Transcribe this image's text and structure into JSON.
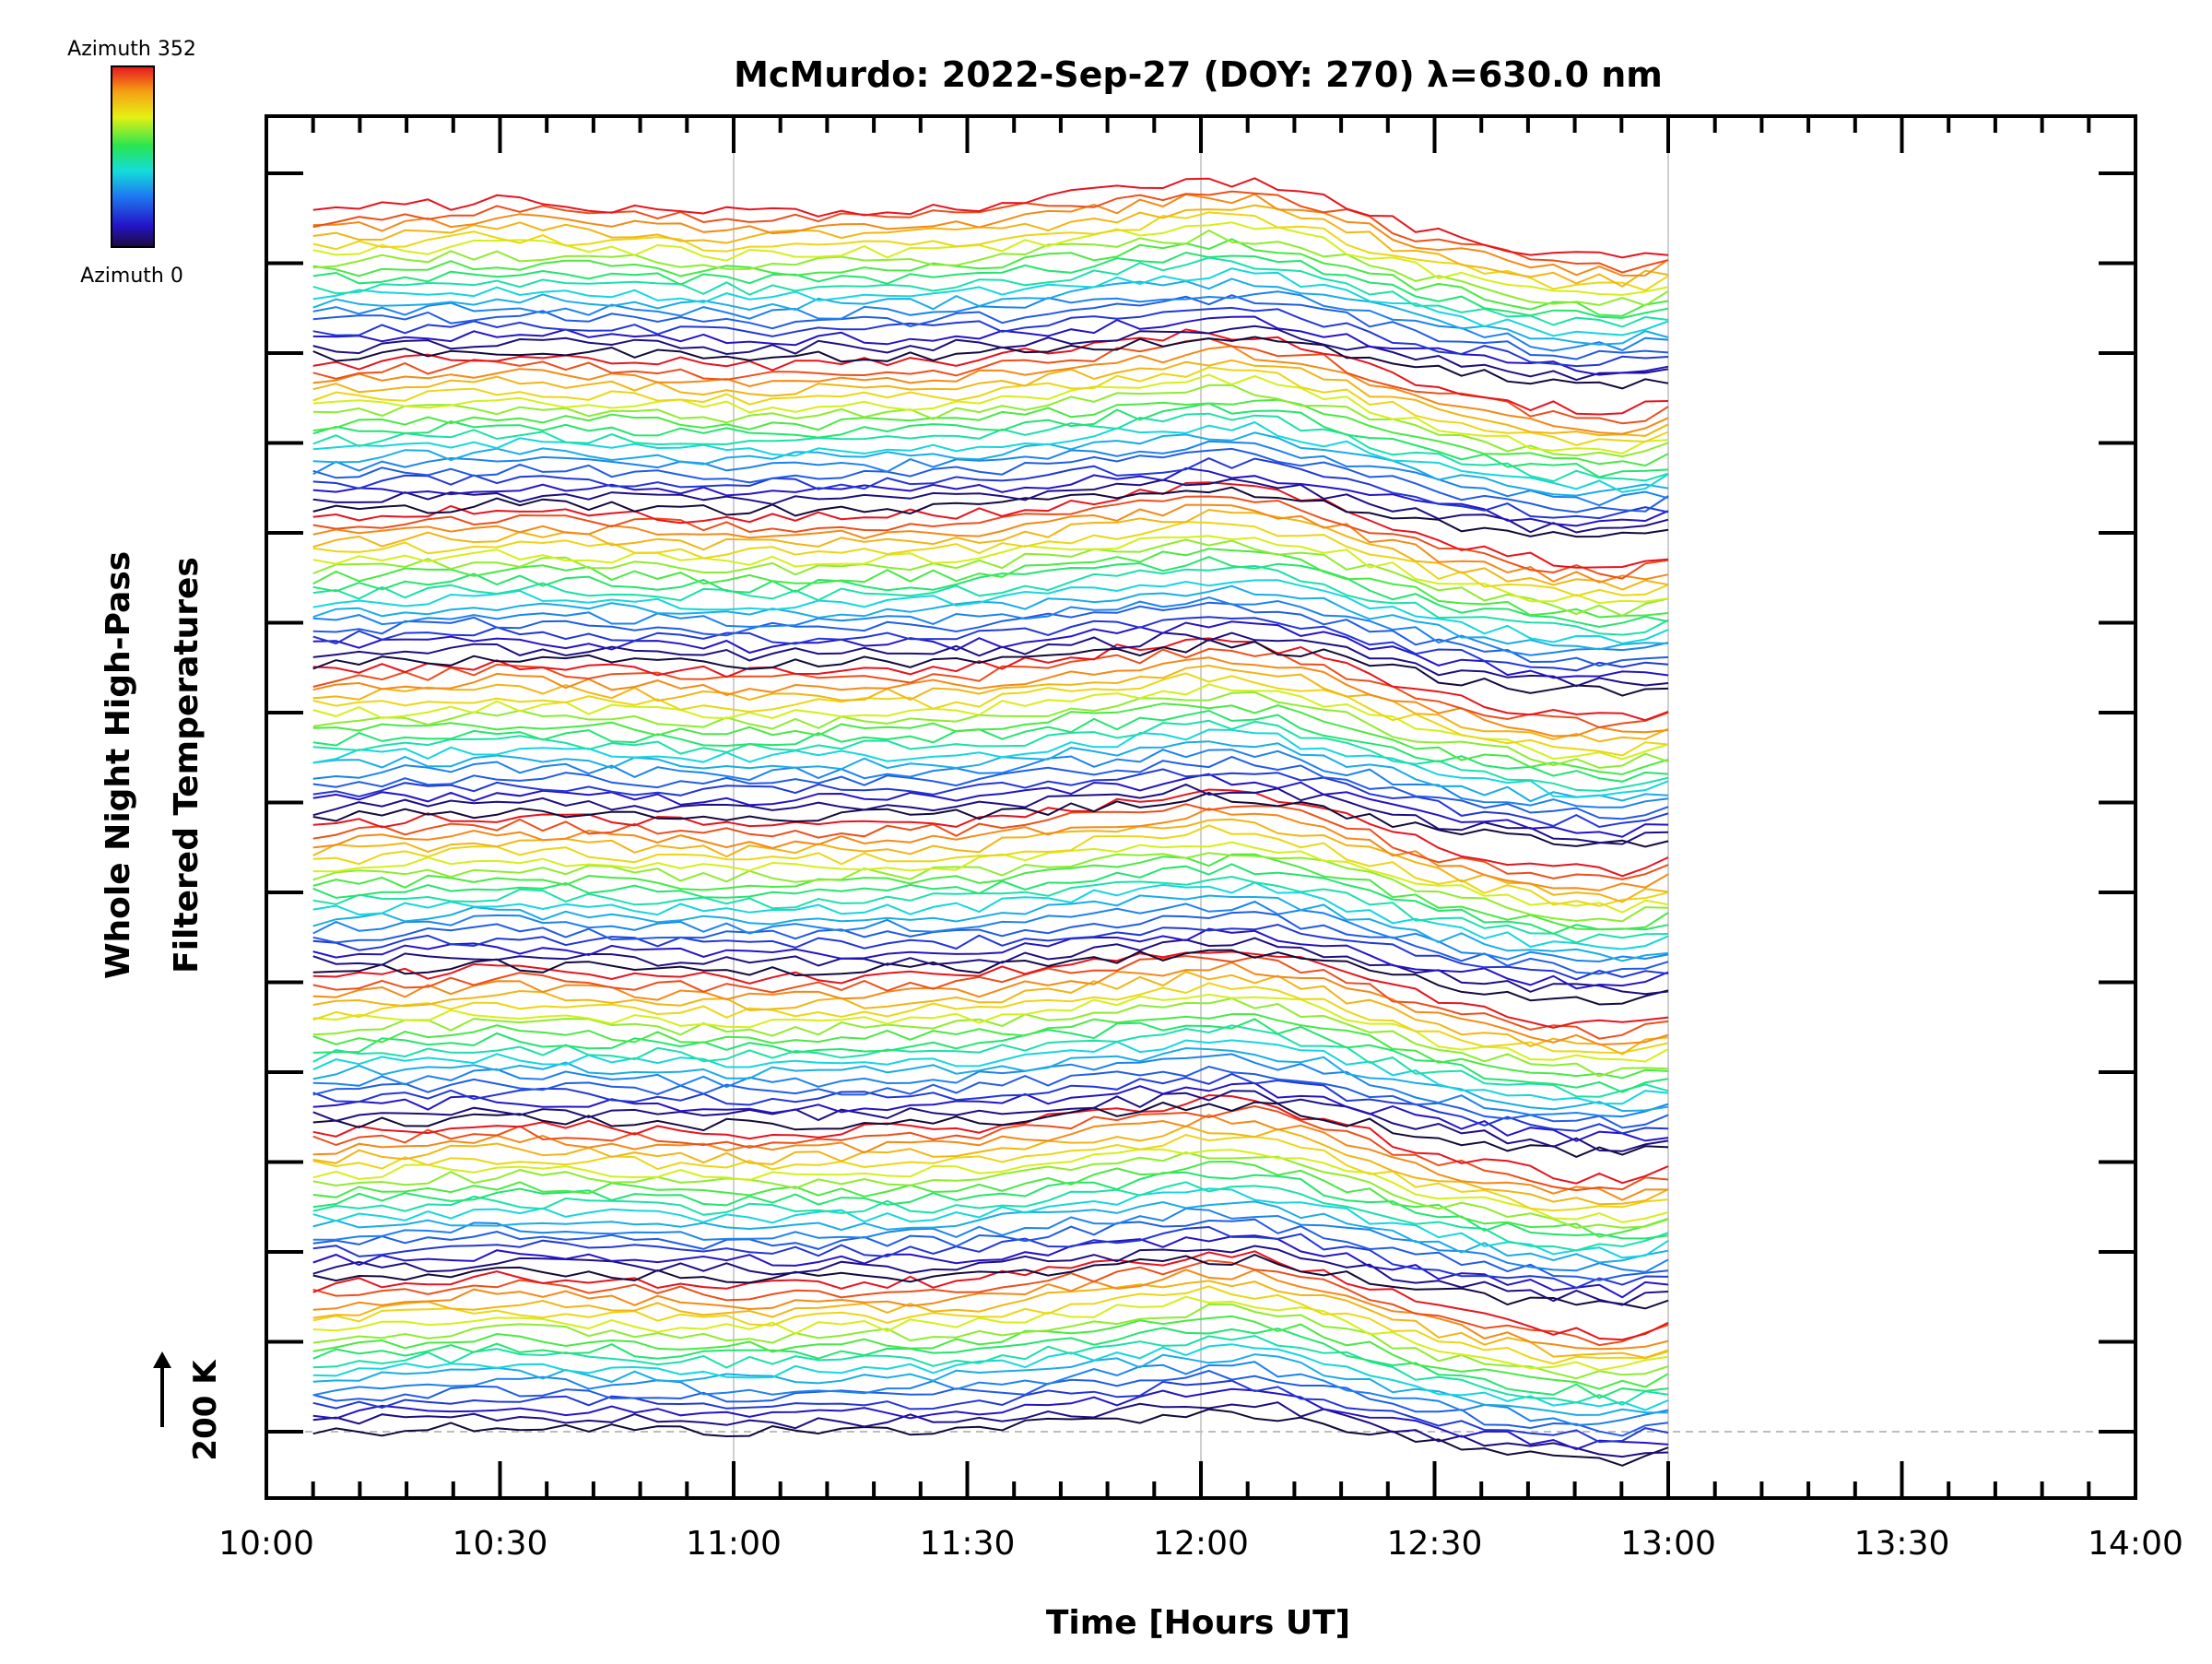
{
  "chart_data": {
    "type": "line",
    "title": "McMurdo: 2022-Sep-27 (DOY: 270) λ=630.0 nm",
    "xlabel": "Time [Hours UT]",
    "ylabel": [
      "Whole Night High-Pass",
      "Filtered Temperatures"
    ],
    "xlim": [
      10.0,
      14.0
    ],
    "x_tick_labels": [
      "10:00",
      "10:30",
      "11:00",
      "11:30",
      "12:00",
      "12:30",
      "13:00",
      "13:30",
      "14:00"
    ],
    "x_tick_values": [
      10.0,
      10.5,
      11.0,
      11.5,
      12.0,
      12.5,
      13.0,
      13.5,
      14.0
    ],
    "grid_x": [
      11.0,
      12.0,
      13.0
    ],
    "data_start": 10.1,
    "data_end": 13.0,
    "series_count": 144,
    "series_offset_K": 200,
    "scale_bar_label": "200 K",
    "colorbar": {
      "top_label": "Azimuth  352",
      "bottom_label": "Azimuth  0",
      "colormap": "rainbow"
    },
    "shared_profile": {
      "x": [
        10.1,
        10.5,
        11.0,
        11.5,
        11.8,
        12.0,
        12.1,
        12.25,
        12.5,
        12.75,
        12.9,
        13.0
      ],
      "y_K": [
        0,
        20,
        0,
        10,
        40,
        60,
        60,
        30,
        -40,
        -80,
        -90,
        -70
      ]
    },
    "note_colors": [
      "#140a50",
      "#2828d2",
      "#14b4e6",
      "#28e650",
      "#e6e614",
      "#f08c14",
      "#e6281e"
    ]
  }
}
